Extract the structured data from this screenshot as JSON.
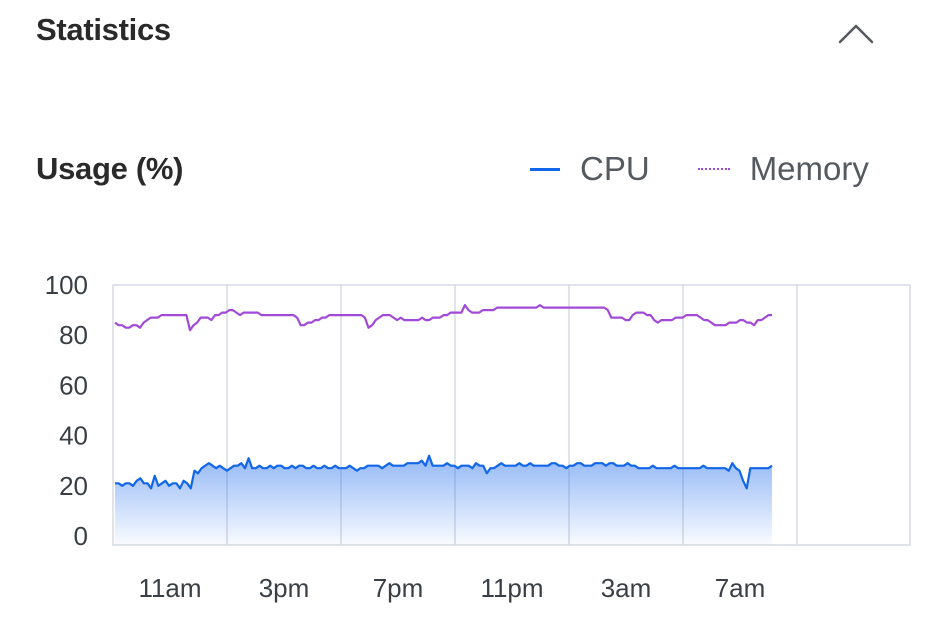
{
  "section": {
    "title": "Statistics",
    "collapse_icon": "chevron-up-icon"
  },
  "chart_data": {
    "type": "line",
    "title": "Usage (%)",
    "xlabel": "",
    "ylabel": "",
    "ylim": [
      0,
      100
    ],
    "yticks": [
      "0",
      "20",
      "40",
      "60",
      "80",
      "100"
    ],
    "xticks": [
      "11am",
      "3pm",
      "7pm",
      "11pm",
      "3am",
      "7am"
    ],
    "grid": "vertical lines at x ticks",
    "legend_position": "top-right",
    "x_start": "9am",
    "x_end": "8am",
    "series": [
      {
        "name": "CPU",
        "color": "#1266e8",
        "style": "solid, area filled",
        "values": [
          21,
          21,
          20,
          21,
          21,
          20,
          22,
          23,
          21,
          21,
          19,
          24,
          20,
          21,
          22,
          20,
          21,
          21,
          19,
          22,
          21,
          19,
          26,
          25,
          27,
          28,
          29,
          28,
          27,
          28,
          27,
          26,
          27,
          28,
          28,
          29,
          27,
          31,
          27,
          27,
          28,
          27,
          27,
          28,
          27,
          28,
          28,
          27,
          27,
          28,
          27,
          28,
          28,
          27,
          27,
          28,
          27,
          27,
          28,
          27,
          27,
          28,
          27,
          27,
          27,
          28,
          27,
          26,
          27,
          27,
          28,
          28,
          28,
          28,
          27,
          28,
          29,
          28,
          28,
          28,
          28,
          29,
          29,
          29,
          29,
          30,
          28,
          32,
          28,
          28,
          28,
          28,
          29,
          28,
          28,
          27,
          28,
          28,
          28,
          27,
          29,
          28,
          28,
          25,
          27,
          27,
          28,
          29,
          28,
          28,
          28,
          28,
          29,
          28,
          28,
          29,
          28,
          28,
          28,
          28,
          28,
          29,
          29,
          28,
          28,
          27,
          28,
          28,
          29,
          29,
          28,
          28,
          28,
          29,
          29,
          29,
          28,
          29,
          29,
          28,
          28,
          28,
          29,
          28,
          28,
          27,
          27,
          27,
          27,
          28,
          27,
          27,
          27,
          27,
          27,
          28,
          27,
          27,
          27,
          27,
          27,
          27,
          27,
          28,
          27,
          27,
          27,
          27,
          27,
          27,
          26,
          29,
          27,
          26,
          22,
          19,
          27,
          27,
          27,
          27,
          27,
          27,
          28
        ]
      },
      {
        "name": "Memory",
        "color": "#a24ad8",
        "style": "solid",
        "values": [
          85,
          84,
          84,
          83,
          83,
          84,
          84,
          83,
          85,
          86,
          87,
          87,
          87,
          88,
          88,
          88,
          88,
          88,
          88,
          88,
          88,
          82,
          84,
          85,
          87,
          87,
          87,
          86,
          88,
          88,
          89,
          89,
          90,
          90,
          89,
          88,
          89,
          89,
          89,
          89,
          89,
          88,
          88,
          88,
          88,
          88,
          88,
          88,
          88,
          88,
          88,
          87,
          84,
          84,
          85,
          85,
          86,
          86,
          87,
          87,
          88,
          88,
          88,
          88,
          88,
          88,
          88,
          88,
          88,
          88,
          87,
          83,
          84,
          86,
          87,
          88,
          88,
          88,
          87,
          86,
          87,
          86,
          86,
          86,
          86,
          86,
          87,
          86,
          86,
          87,
          87,
          87,
          88,
          88,
          89,
          89,
          89,
          89,
          92,
          90,
          89,
          89,
          89,
          90,
          90,
          90,
          90,
          91,
          91,
          91,
          91,
          91,
          91,
          91,
          91,
          91,
          91,
          91,
          91,
          92,
          91,
          91,
          91,
          91,
          91,
          91,
          91,
          91,
          91,
          91,
          91,
          91,
          91,
          91,
          91,
          91,
          91,
          91,
          90,
          87,
          87,
          87,
          87,
          86,
          86,
          88,
          89,
          89,
          89,
          88,
          88,
          86,
          85,
          86,
          86,
          86,
          86,
          87,
          87,
          87,
          88,
          88,
          88,
          88,
          87,
          86,
          86,
          85,
          84,
          84,
          84,
          84,
          85,
          85,
          85,
          86,
          86,
          85,
          85,
          84,
          86,
          86,
          87,
          88,
          88
        ]
      }
    ]
  }
}
